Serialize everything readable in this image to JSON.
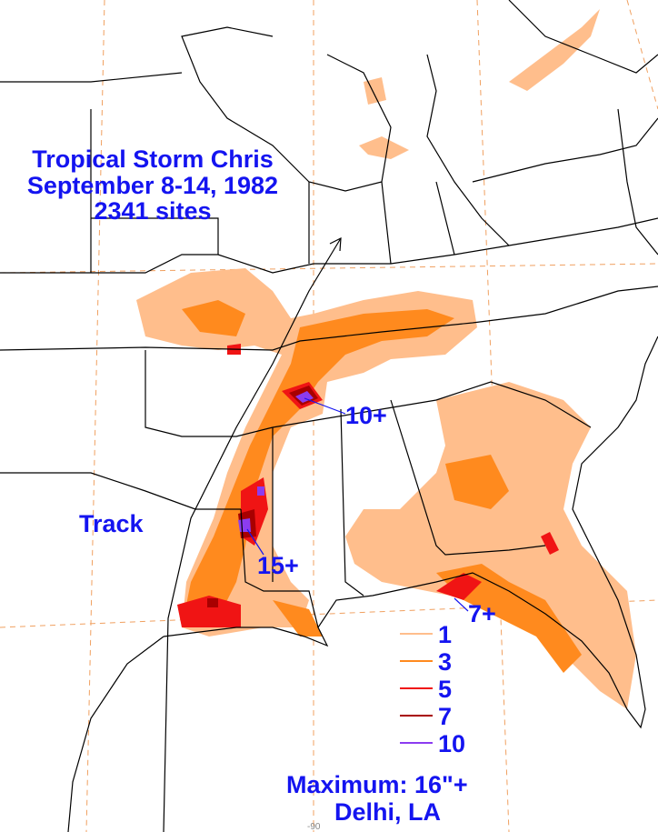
{
  "title": {
    "lines": [
      "Tropical Storm Chris",
      "September 8-14, 1982",
      "2341 sites"
    ]
  },
  "legend": {
    "items": [
      {
        "label": "1",
        "color": "#ffbe8c"
      },
      {
        "label": "3",
        "color": "#ff8a1e"
      },
      {
        "label": "5",
        "color": "#f01414"
      },
      {
        "label": "7",
        "color": "#a80000"
      },
      {
        "label": "10",
        "color": "#8c3cf0"
      }
    ]
  },
  "annotations": [
    {
      "text": "Track"
    },
    {
      "text": "10+"
    },
    {
      "text": "15+"
    },
    {
      "text": "7+"
    }
  ],
  "maximum": {
    "lines": [
      "Maximum:  16\"+",
      "Delhi, LA"
    ]
  },
  "longitude_label": "-90"
}
